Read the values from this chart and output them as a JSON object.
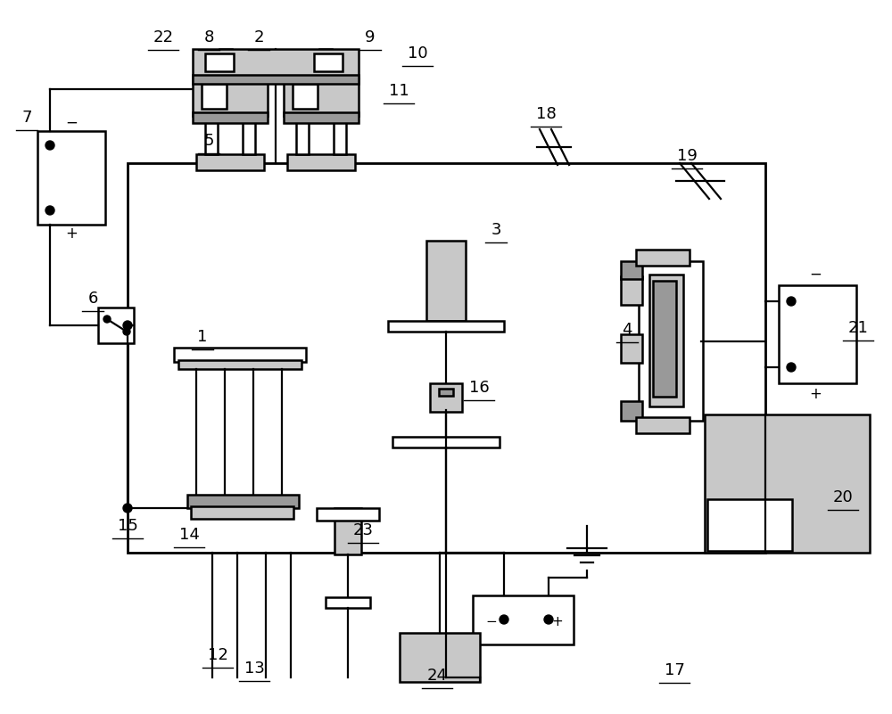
{
  "bg": "#ffffff",
  "lc": "#000000",
  "gl": "#c8c8c8",
  "gm": "#999999",
  "figsize": [
    10.0,
    8.01
  ],
  "dpi": 100,
  "lw_main": 1.8,
  "lw_wire": 1.6
}
